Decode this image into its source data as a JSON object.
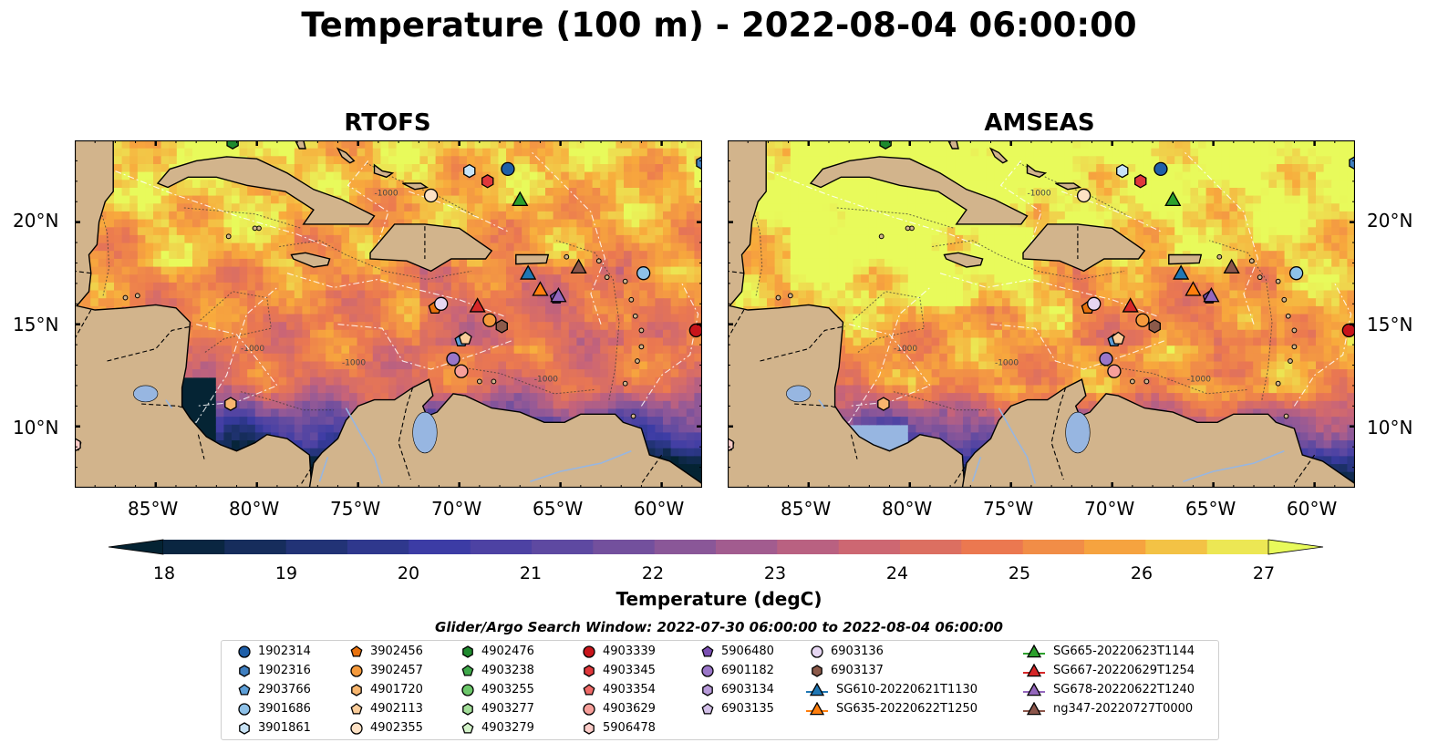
{
  "title": "Temperature (100 m) - 2022-08-04 06:00:00",
  "panels": [
    {
      "title": "RTOFS"
    },
    {
      "title": "AMSEAS"
    }
  ],
  "map": {
    "lon_ticks": [
      "85°W",
      "80°W",
      "75°W",
      "70°W",
      "65°W",
      "60°W"
    ],
    "lat_ticks": [
      "20°N",
      "15°N",
      "10°N"
    ],
    "extent": {
      "lon_min": -89,
      "lon_max": -58,
      "lat_min": 7,
      "lat_max": 24
    },
    "contour_label": "-1000",
    "colors": {
      "ocean_background": "#97b6e1",
      "land": "#d2b48c"
    }
  },
  "colorbar": {
    "label": "Temperature (degC)",
    "ticks": [
      "18",
      "19",
      "20",
      "21",
      "22",
      "23",
      "24",
      "25",
      "26",
      "27"
    ],
    "range": [
      18,
      27
    ],
    "colormap": "thermal",
    "extend": "both"
  },
  "legend": {
    "title": "Glider/Argo Search Window: 2022-07-30 06:00:00 to 2022-08-04 06:00:00",
    "columns": [
      [
        {
          "label": "1902314",
          "marker": "circle",
          "color": "#1f5fa8"
        },
        {
          "label": "1902316",
          "marker": "hexagon",
          "color": "#3f7fc0"
        },
        {
          "label": "2903766",
          "marker": "pentagon",
          "color": "#5d9fd8"
        },
        {
          "label": "3901686",
          "marker": "circle",
          "color": "#8ec1e8"
        },
        {
          "label": "3901861",
          "marker": "hexagon",
          "color": "#c8e3f6"
        }
      ],
      [
        {
          "label": "3902456",
          "marker": "pentagon",
          "color": "#e8720e"
        },
        {
          "label": "3902457",
          "marker": "circle",
          "color": "#f59a3c"
        },
        {
          "label": "4901720",
          "marker": "hexagon",
          "color": "#f8b66e"
        },
        {
          "label": "4902113",
          "marker": "pentagon",
          "color": "#fbcd9a"
        },
        {
          "label": "4902355",
          "marker": "circle",
          "color": "#fde1c4"
        }
      ],
      [
        {
          "label": "4902476",
          "marker": "hexagon",
          "color": "#1f8a2e"
        },
        {
          "label": "4903238",
          "marker": "pentagon",
          "color": "#3fa94a"
        },
        {
          "label": "4903255",
          "marker": "circle",
          "color": "#6cc76a"
        },
        {
          "label": "4903277",
          "marker": "hexagon",
          "color": "#a3de99"
        },
        {
          "label": "4903279",
          "marker": "pentagon",
          "color": "#d2f2c8"
        }
      ],
      [
        {
          "label": "4903339",
          "marker": "circle",
          "color": "#c8151b"
        },
        {
          "label": "4903345",
          "marker": "hexagon",
          "color": "#e0383b"
        },
        {
          "label": "4903354",
          "marker": "pentagon",
          "color": "#ef6a67"
        },
        {
          "label": "4903629",
          "marker": "circle",
          "color": "#f79f9a"
        },
        {
          "label": "5906478",
          "marker": "hexagon",
          "color": "#fcccc8"
        }
      ],
      [
        {
          "label": "5906480",
          "marker": "pentagon",
          "color": "#7b4fb3"
        },
        {
          "label": "6901182",
          "marker": "circle",
          "color": "#9a76c8"
        },
        {
          "label": "6903134",
          "marker": "hexagon",
          "color": "#b79ad9"
        },
        {
          "label": "6903135",
          "marker": "pentagon",
          "color": "#d2bfe8"
        }
      ],
      [
        {
          "label": "6903136",
          "marker": "circle",
          "color": "#e6d6f2"
        },
        {
          "label": "6903137",
          "marker": "hexagon",
          "color": "#8c5a4a"
        },
        {
          "label": "SG610-20220621T1130",
          "marker": "triangle-line",
          "color": "#1f77b4"
        },
        {
          "label": "SG635-20220622T1250",
          "marker": "triangle-line",
          "color": "#ff7f0e"
        }
      ],
      [
        {
          "label": "SG665-20220623T1144",
          "marker": "triangle-line",
          "color": "#2ca02c"
        },
        {
          "label": "SG667-20220629T1254",
          "marker": "triangle-line",
          "color": "#d62728"
        },
        {
          "label": "SG678-20220622T1240",
          "marker": "triangle-line",
          "color": "#9467bd"
        },
        {
          "label": "ng347-20220727T0000",
          "marker": "triangle-line",
          "color": "#8c564b"
        }
      ]
    ]
  },
  "points": [
    {
      "label": "1902314",
      "lon": -67.6,
      "lat": 22.6
    },
    {
      "label": "1902316",
      "lon": -58.0,
      "lat": 22.9
    },
    {
      "label": "2903766",
      "lon": -69.9,
      "lat": 14.2
    },
    {
      "label": "3901686",
      "lon": -60.9,
      "lat": 17.5
    },
    {
      "label": "3901861",
      "lon": -69.5,
      "lat": 22.5
    },
    {
      "label": "3902456",
      "lon": -71.2,
      "lat": 15.8
    },
    {
      "label": "3902457",
      "lon": -68.5,
      "lat": 15.2
    },
    {
      "label": "4901720",
      "lon": -81.3,
      "lat": 11.1
    },
    {
      "label": "4902113",
      "lon": -69.7,
      "lat": 14.3
    },
    {
      "label": "4902355",
      "lon": -71.4,
      "lat": 21.3
    },
    {
      "label": "4902476",
      "lon": -81.2,
      "lat": 23.9
    },
    {
      "label": "4903279",
      "lon": -89.0,
      "lat": 9.1
    },
    {
      "label": "4903339",
      "lon": -58.3,
      "lat": 14.7
    },
    {
      "label": "4903345",
      "lon": -68.6,
      "lat": 22.0
    },
    {
      "label": "4903629",
      "lon": -69.9,
      "lat": 12.7
    },
    {
      "label": "5906478",
      "lon": -89.0,
      "lat": 9.1
    },
    {
      "label": "5906480",
      "lon": -65.2,
      "lat": 16.3
    },
    {
      "label": "6901182",
      "lon": -70.3,
      "lat": 13.3
    },
    {
      "label": "6903136",
      "lon": -70.9,
      "lat": 16.0
    },
    {
      "label": "6903137",
      "lon": -67.9,
      "lat": 14.9
    },
    {
      "label": "SG610-20220621T1130",
      "lon": -66.6,
      "lat": 17.5
    },
    {
      "label": "SG635-20220622T1250",
      "lon": -66.0,
      "lat": 16.7
    },
    {
      "label": "SG665-20220623T1144",
      "lon": -67.0,
      "lat": 21.1
    },
    {
      "label": "SG667-20220629T1254",
      "lon": -69.1,
      "lat": 15.9
    },
    {
      "label": "SG678-20220622T1240",
      "lon": -65.1,
      "lat": 16.4
    },
    {
      "label": "ng347-20220727T0000",
      "lon": -64.1,
      "lat": 17.8
    }
  ]
}
